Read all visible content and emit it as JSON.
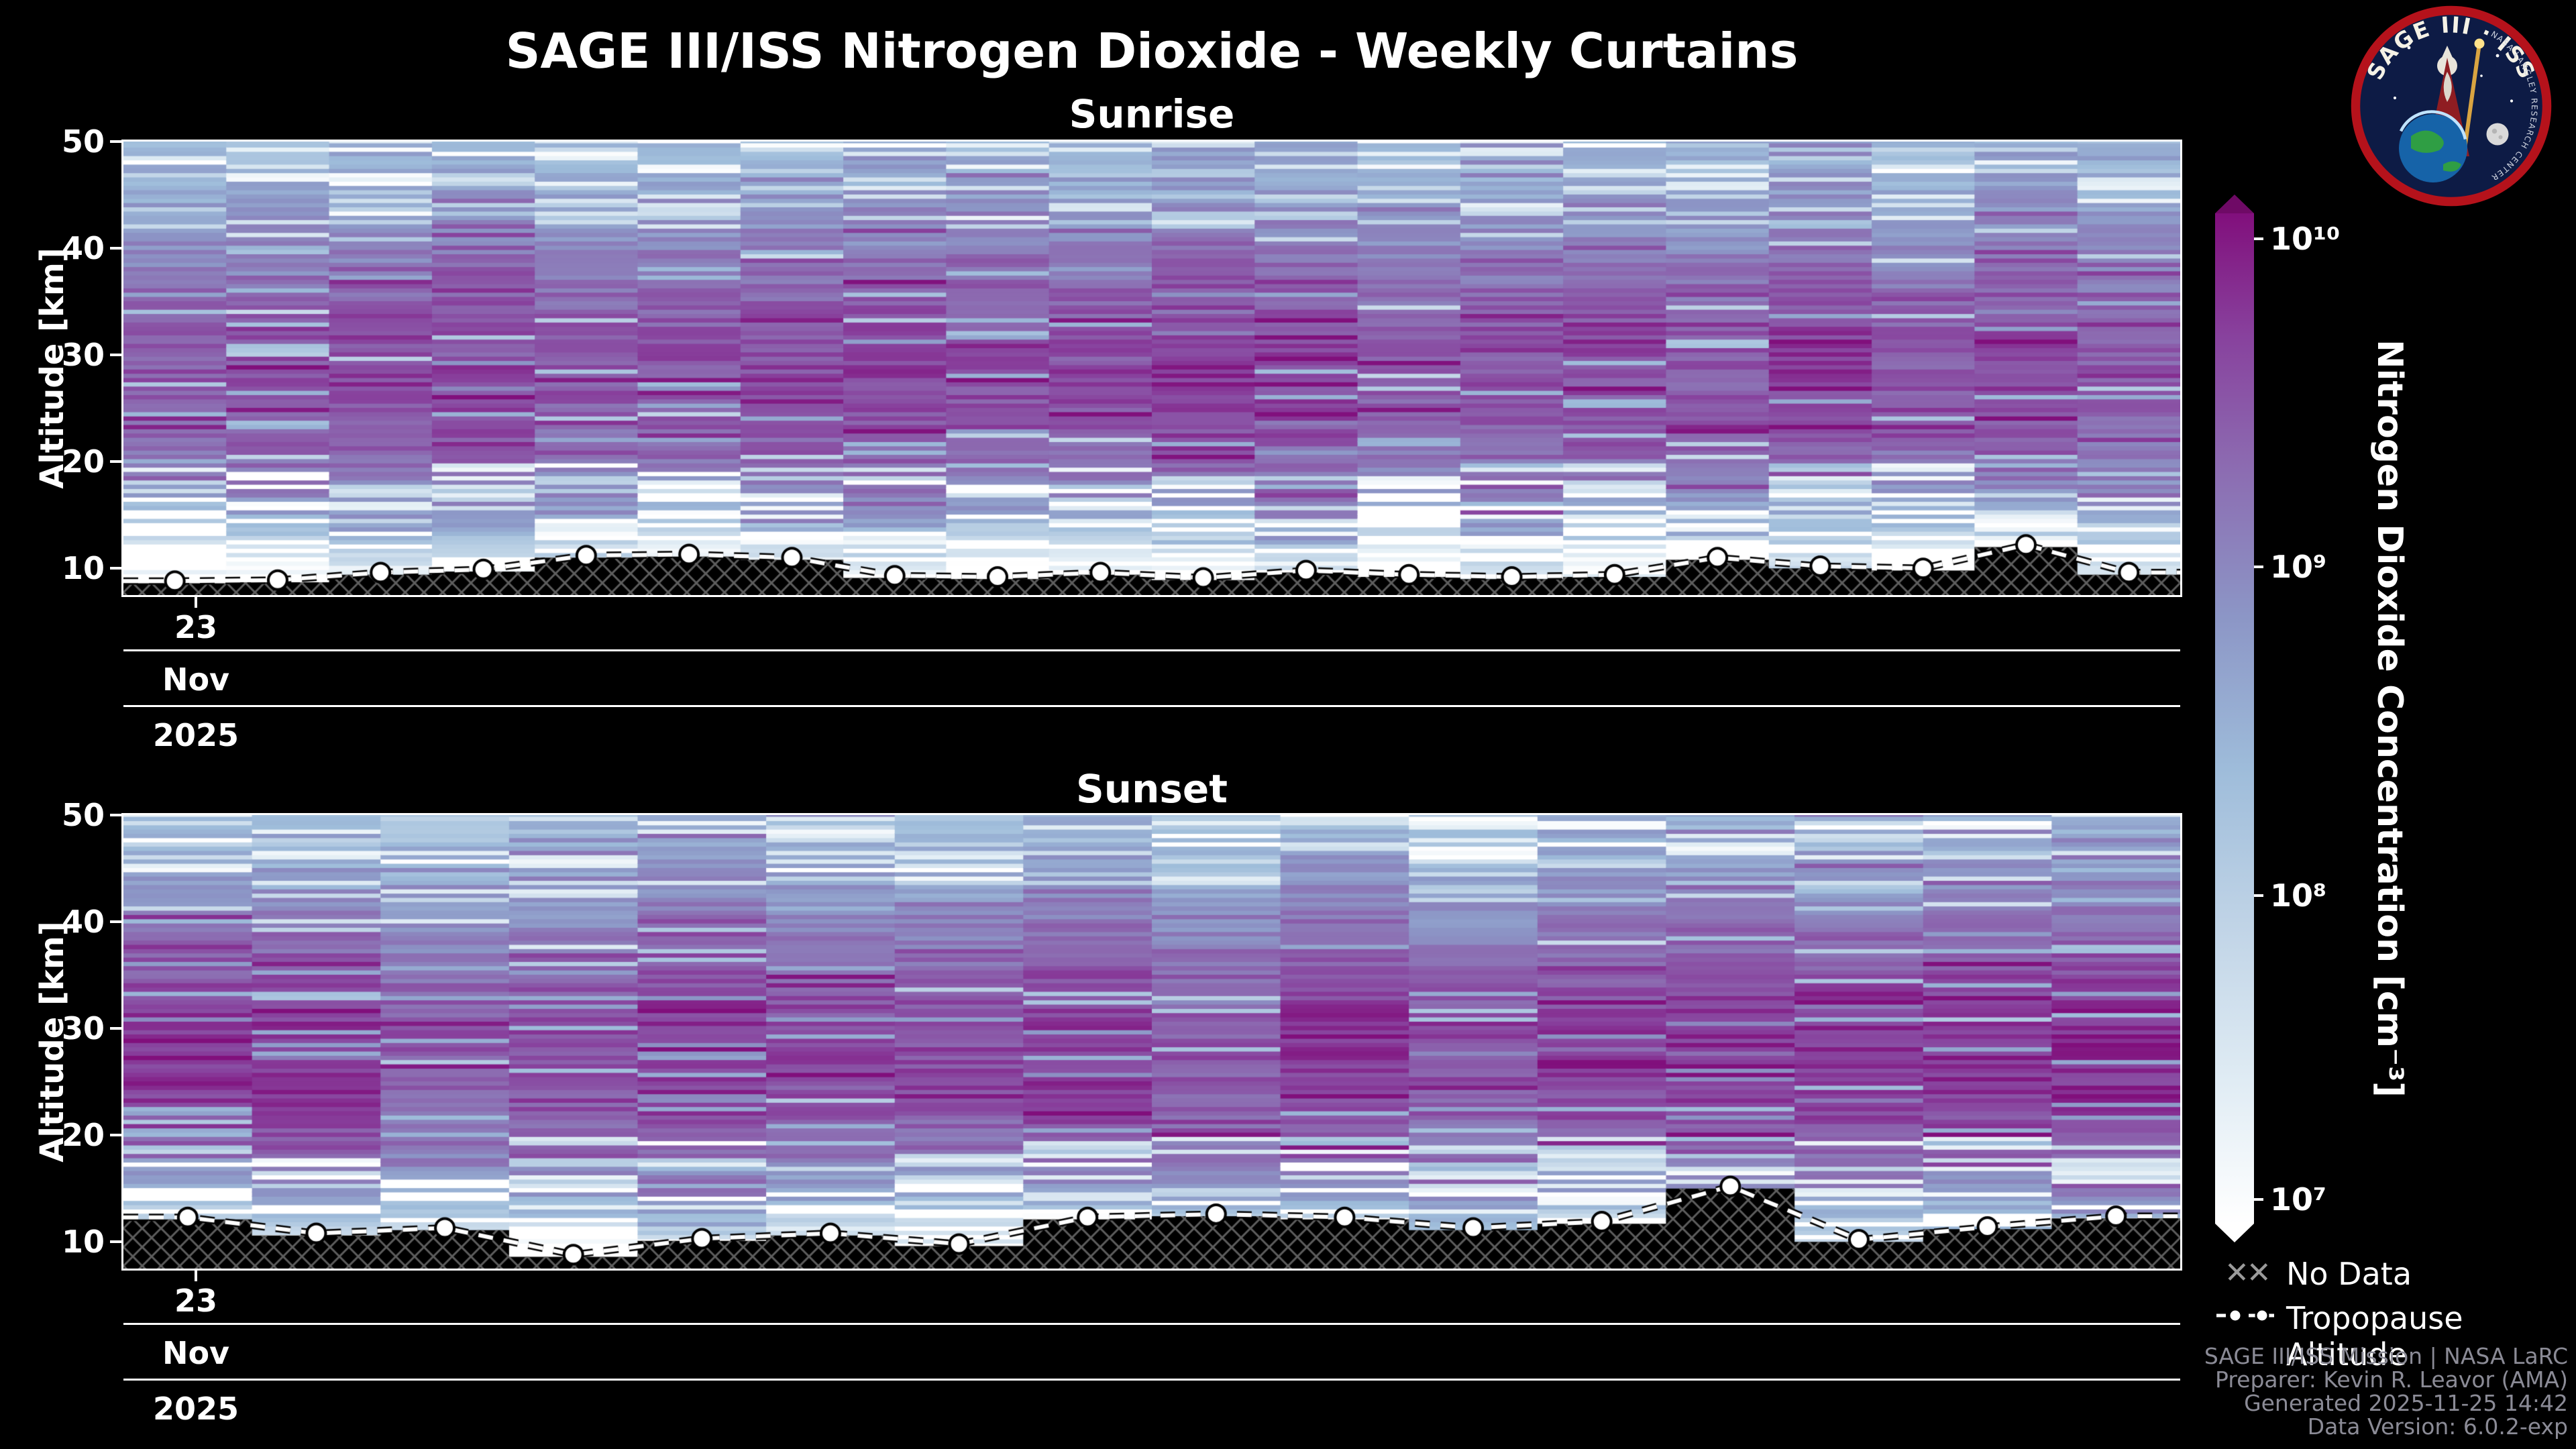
{
  "page": {
    "title": "SAGE III/ISS Nitrogen Dioxide - Weekly Curtains",
    "background": "#000000"
  },
  "xaxis": {
    "day": "23",
    "month": "Nov",
    "year": "2025"
  },
  "colorbar": {
    "label": "Nitrogen Dioxide Concentration [cm⁻³]",
    "scale": "log10",
    "range_log10": [
      7,
      10
    ],
    "ticks": [
      {
        "label": "10¹⁰",
        "pos": 0.025
      },
      {
        "label": "10⁹",
        "pos": 0.35
      },
      {
        "label": "10⁸",
        "pos": 0.675
      },
      {
        "label": "10⁷",
        "pos": 0.976
      }
    ],
    "gradient": [
      "#ffffff",
      "#e0ecf4",
      "#bfd3e6",
      "#9ebcda",
      "#8c96c6",
      "#8c6bb1",
      "#88419d",
      "#810f7c"
    ],
    "over_color": "#6f0a66",
    "under_color": "#ffffff"
  },
  "legend": {
    "no_data_symbol": "✕✕",
    "no_data": "No Data",
    "tropopause": "Tropopause Altitude"
  },
  "footer": {
    "lines": [
      "SAGE III/ISS Mission | NASA LaRC",
      "Preparer: Kevin R. Leavor (AMA)",
      "Generated 2025-11-25 14:42",
      "Data Version: 6.0.2-exp"
    ]
  },
  "logo": {
    "title": "SAGE III · ISS",
    "ring_text": "NASA LANGLEY RESEARCH CENTER"
  },
  "chart_data": [
    {
      "type": "heatmap",
      "title": "Sunrise",
      "ylabel": "Altitude [km]",
      "xlabel": "",
      "ylim": [
        7.5,
        50
      ],
      "yticks": [
        10,
        20,
        30,
        40,
        50
      ],
      "x_tick_labels": [
        "23"
      ],
      "x_axis_rows": [
        "Nov",
        "2025"
      ],
      "colormap": "white-to-dark-purple (BuPu), log10 concentration 7..10",
      "n_columns": 20,
      "profile_altitudes_km": [
        7.5,
        9,
        11,
        13,
        15,
        17,
        20,
        24,
        28,
        32,
        36,
        40,
        44,
        47,
        50
      ],
      "profile_log10_concentration": [
        6.9,
        7.0,
        7.5,
        8.1,
        8.6,
        8.95,
        9.25,
        9.45,
        9.55,
        9.5,
        9.3,
        9.05,
        8.75,
        8.55,
        8.4
      ],
      "tropopause_altitude_km": [
        8.8,
        8.9,
        9.6,
        9.9,
        11.2,
        11.3,
        11.0,
        9.3,
        9.2,
        9.6,
        9.1,
        9.8,
        9.4,
        9.2,
        9.4,
        11.0,
        10.2,
        10.0,
        12.2,
        9.6
      ]
    },
    {
      "type": "heatmap",
      "title": "Sunset",
      "ylabel": "Altitude [km]",
      "xlabel": "",
      "ylim": [
        7.5,
        50
      ],
      "yticks": [
        10,
        20,
        30,
        40,
        50
      ],
      "x_tick_labels": [
        "23"
      ],
      "x_axis_rows": [
        "Nov",
        "2025"
      ],
      "colormap": "white-to-dark-purple (BuPu), log10 concentration 7..10",
      "n_columns": 16,
      "profile_altitudes_km": [
        7.5,
        9,
        11,
        13,
        15,
        17,
        20,
        24,
        28,
        32,
        36,
        40,
        44,
        47,
        50
      ],
      "profile_log10_concentration": [
        7.0,
        7.1,
        7.7,
        8.3,
        8.8,
        9.1,
        9.35,
        9.55,
        9.6,
        9.55,
        9.3,
        9.0,
        8.7,
        8.5,
        8.3
      ],
      "tropopause_altitude_km": [
        12.3,
        10.8,
        11.3,
        8.8,
        10.3,
        10.8,
        9.8,
        12.3,
        12.6,
        12.3,
        11.3,
        11.9,
        15.2,
        10.2,
        11.4,
        12.4
      ]
    }
  ]
}
